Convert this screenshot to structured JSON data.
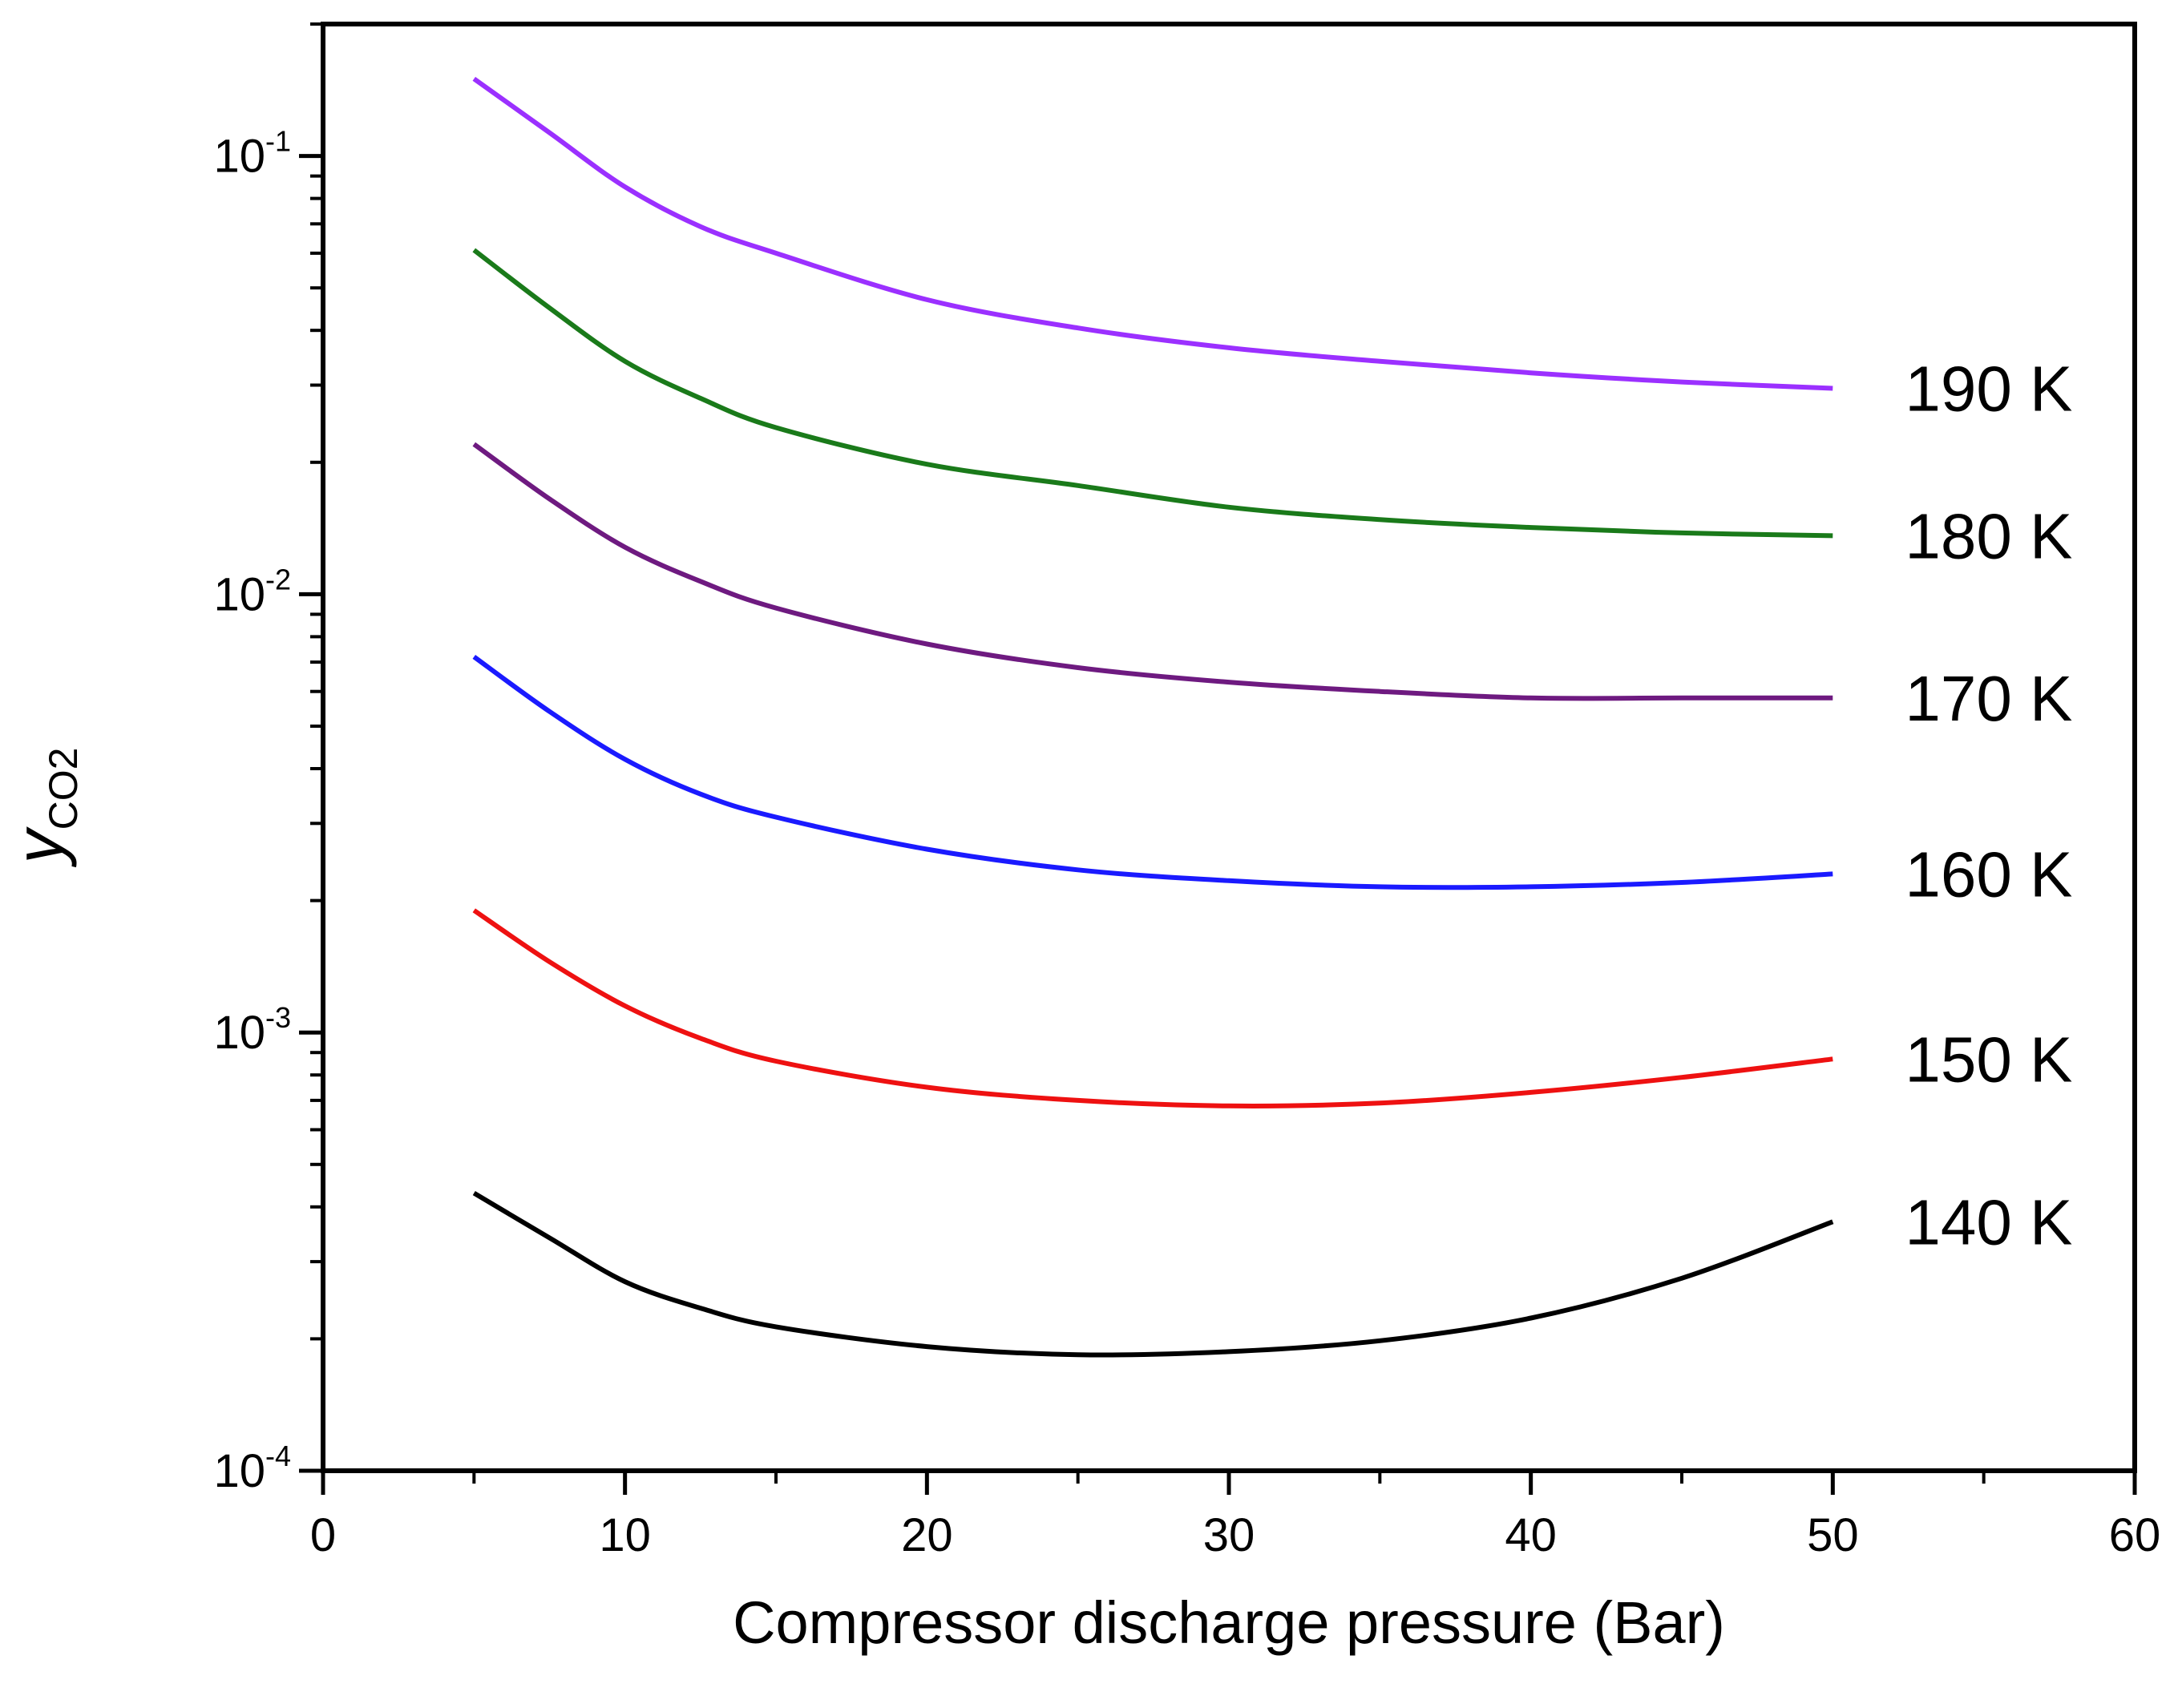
{
  "chart_data": {
    "type": "line",
    "title": "",
    "xlabel": "Compressor discharge pressure (Bar)",
    "ylabel_main": "y",
    "ylabel_sub": "CO2",
    "xlim": [
      0,
      60
    ],
    "ylim": [
      0.0001,
      0.2
    ],
    "yscale": "log",
    "grid": false,
    "x_ticks": [
      0,
      10,
      20,
      30,
      40,
      50,
      60
    ],
    "x_tick_labels": [
      "0",
      "10",
      "20",
      "30",
      "40",
      "50",
      "60"
    ],
    "y_ticks": [
      0.0001,
      0.001,
      0.01,
      0.1
    ],
    "y_tick_labels": [
      {
        "base": "10",
        "exp": "-4"
      },
      {
        "base": "10",
        "exp": "-3"
      },
      {
        "base": "10",
        "exp": "-2"
      },
      {
        "base": "10",
        "exp": "-1"
      }
    ],
    "x": [
      5,
      7.5,
      10,
      12.5,
      15,
      20,
      25,
      30,
      35,
      40,
      45,
      50
    ],
    "series": [
      {
        "name": "190 K",
        "label": "190 K",
        "color": "#9b30ff",
        "values": [
          0.15,
          0.113,
          0.085,
          0.069,
          0.06,
          0.047,
          0.0405,
          0.0365,
          0.034,
          0.032,
          0.0305,
          0.0295
        ]
      },
      {
        "name": "180 K",
        "label": "180 K",
        "color": "#1a7a1a",
        "values": [
          0.061,
          0.045,
          0.034,
          0.028,
          0.024,
          0.0198,
          0.0177,
          0.0158,
          0.0148,
          0.0142,
          0.0138,
          0.0136
        ]
      },
      {
        "name": "170 K",
        "label": "170 K",
        "color": "#6e1a80",
        "values": [
          0.022,
          0.0165,
          0.0128,
          0.0107,
          0.0093,
          0.0077,
          0.0068,
          0.0063,
          0.006,
          0.0058,
          0.0058,
          0.0058
        ]
      },
      {
        "name": "160 K",
        "label": "160 K",
        "color": "#1a1aff",
        "values": [
          0.0072,
          0.0054,
          0.0042,
          0.0035,
          0.0031,
          0.00262,
          0.00235,
          0.00222,
          0.00215,
          0.00215,
          0.0022,
          0.0023
        ]
      },
      {
        "name": "150 K",
        "label": "150 K",
        "color": "#ee1111",
        "values": [
          0.0019,
          0.00145,
          0.00115,
          0.00097,
          0.00086,
          0.00075,
          0.0007,
          0.00068,
          0.00069,
          0.00073,
          0.00079,
          0.00087
        ]
      },
      {
        "name": "140 K",
        "label": "140 K",
        "color": "#000000",
        "values": [
          0.00043,
          0.00034,
          0.00027,
          0.000235,
          0.000213,
          0.000192,
          0.000184,
          0.000187,
          0.000198,
          0.000223,
          0.000275,
          0.00037
        ]
      }
    ]
  }
}
